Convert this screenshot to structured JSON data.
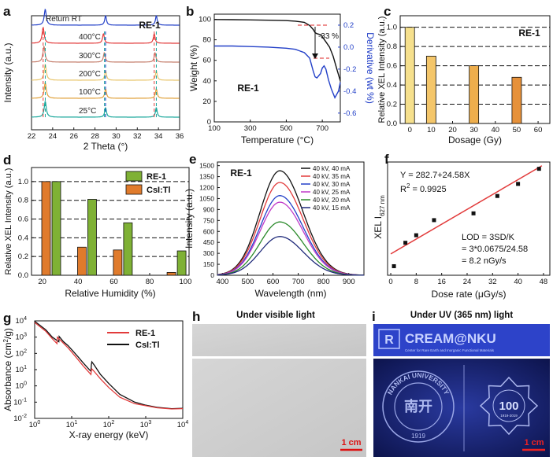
{
  "colors": {
    "red": "#e23b3b",
    "green": "#7fb135",
    "orange": "#e07b2c",
    "blue": "#2340c8",
    "black": "#111111",
    "teal": "#18a79b",
    "yellow": "#f4c63d",
    "gold": "#e7a636"
  },
  "panels": {
    "a": {
      "letter": "a",
      "label": "RE-1",
      "xlabel": "2 Theta (°)",
      "ylabel": "Intensity (a.u.)",
      "xticks": [
        22,
        24,
        26,
        28,
        30,
        32,
        34,
        36
      ],
      "xlim": [
        22,
        36
      ],
      "traces": [
        {
          "name": "Return RT",
          "color": "#2340c8"
        },
        {
          "name": "400°C",
          "color": "#e23b3b"
        },
        {
          "name": "300°C",
          "color": "#c47c6a"
        },
        {
          "name": "200°C",
          "color": "#e8c56b"
        },
        {
          "name": "100°C",
          "color": "#e0a13a"
        },
        {
          "name": "25°C",
          "color": "#18a79b"
        }
      ],
      "peaks": [
        23.3,
        29.0,
        33.8
      ]
    },
    "b": {
      "letter": "b",
      "label": "RE-1",
      "xlabel": "Temperature (°C)",
      "ylabel": "Weight (%)",
      "y2label": "Derivative (wt %)",
      "annotation": "-33 %",
      "xticks": [
        100,
        300,
        500,
        700
      ],
      "xlim": [
        100,
        800
      ],
      "yticks": [
        0,
        20,
        40,
        60,
        80,
        100
      ],
      "ylim": [
        0,
        105
      ],
      "y2ticks": [
        "0.2",
        "0.0",
        "-0.2",
        "-0.4",
        "-0.6"
      ],
      "weight": {
        "x": [
          100,
          200,
          300,
          400,
          500,
          550,
          600,
          630,
          650,
          660,
          670,
          690,
          700,
          720,
          740,
          760,
          780,
          800
        ],
        "y": [
          99.8,
          99.6,
          99.4,
          99.1,
          98.7,
          98.2,
          97,
          94,
          90,
          87,
          86,
          85,
          83,
          78,
          73,
          64,
          52,
          40
        ]
      },
      "derivative": {
        "x": [
          100,
          200,
          300,
          400,
          500,
          550,
          600,
          630,
          650,
          660,
          670,
          690,
          700,
          710,
          720,
          735,
          750,
          770,
          790,
          800
        ],
        "y": [
          0.01,
          0.01,
          0.005,
          0.0,
          -0.01,
          -0.02,
          -0.05,
          -0.1,
          -0.22,
          -0.27,
          -0.28,
          -0.24,
          -0.19,
          -0.17,
          -0.2,
          -0.3,
          -0.38,
          -0.46,
          -0.4,
          -0.32
        ]
      }
    },
    "c": {
      "letter": "c",
      "label": "RE-1",
      "xlabel": "Dosage (Gy)",
      "ylabel": "Relative XEL Intensity (a.u.)",
      "xticks": [
        0,
        10,
        20,
        30,
        40,
        50,
        60
      ],
      "yticks": [
        "0.0",
        "0.2",
        "0.4",
        "0.6",
        "0.8",
        "1.0"
      ],
      "bars": [
        {
          "x": 0,
          "value": 1.0,
          "color": "#f6e08d"
        },
        {
          "x": 10,
          "value": 0.7,
          "color": "#f4c66a"
        },
        {
          "x": 30,
          "value": 0.6,
          "color": "#eeae4c"
        },
        {
          "x": 50,
          "value": 0.48,
          "color": "#e6913a"
        }
      ]
    },
    "d": {
      "letter": "d",
      "xlabel": "Relative Humidity (%)",
      "ylabel": "Relative XEL Intensity (a.u.)",
      "xticks": [
        20,
        40,
        60,
        80,
        100
      ],
      "yticks": [
        "0.0",
        "0.2",
        "0.4",
        "0.6",
        "0.8",
        "1.0"
      ],
      "legend": [
        "RE-1",
        "CsI:Tl"
      ],
      "groups": [
        {
          "x": 25,
          "re1": 1.0,
          "csi": 1.0
        },
        {
          "x": 45,
          "re1": 0.81,
          "csi": 0.3
        },
        {
          "x": 65,
          "re1": 0.56,
          "csi": 0.27
        },
        {
          "x": 95,
          "re1": 0.26,
          "csi": 0.03
        }
      ]
    },
    "e": {
      "letter": "e",
      "label": "RE-1",
      "xlabel": "Wavelength (nm)",
      "ylabel": "Intensity (a.u.)",
      "xticks": [
        400,
        500,
        600,
        700,
        800,
        900
      ],
      "yticks": [
        0,
        150,
        300,
        450,
        600,
        750,
        900,
        1050,
        1200,
        1350,
        1500
      ],
      "xlim": [
        380,
        960
      ],
      "ylim": [
        0,
        1550
      ],
      "center": 627,
      "series": [
        {
          "name": "40 kV, 40 mA",
          "peak": 1430,
          "color": "#111111"
        },
        {
          "name": "40 kV, 35 mA",
          "peak": 1270,
          "color": "#e23b3b"
        },
        {
          "name": "40 kV, 30 mA",
          "peak": 1090,
          "color": "#2340c8"
        },
        {
          "name": "40 kV, 25 mA",
          "peak": 1000,
          "color": "#c13bc9"
        },
        {
          "name": "40 kV, 20 mA",
          "peak": 730,
          "color": "#2a8a2a"
        },
        {
          "name": "40 kV, 15 mA",
          "peak": 530,
          "color": "#1f2a7a"
        }
      ]
    },
    "f": {
      "letter": "f",
      "xlabel": "Dose rate (μGy/s)",
      "ylabel": "XEL I",
      "ylabel_sub": "627 nm",
      "xticks": [
        0,
        8,
        16,
        24,
        32,
        40,
        48
      ],
      "xlim": [
        -1,
        50
      ],
      "ylim": [
        0,
        1500
      ],
      "equation": "Y = 282.7+24.58X",
      "r2": "R",
      "r2_sup": "2",
      "r2_val": " = 0.9925",
      "lod1": "LOD = 3SD/K",
      "lod2": "= 3*0.0675/24.58",
      "lod3": "= 8.2 nGy/s",
      "points": {
        "x": [
          1,
          4.6,
          8,
          13.6,
          26,
          33.5,
          40,
          46.6
        ],
        "y": [
          120,
          430,
          530,
          730,
          820,
          1050,
          1210,
          1410
        ]
      },
      "fit": {
        "intercept": 282.7,
        "slope": 24.58
      }
    },
    "g": {
      "letter": "g",
      "xlabel": "X-ray energy (keV)",
      "ylabel": "Absorbance (cm",
      "ylabel_sup": "2",
      "ylabel_end": "/g)",
      "legend": [
        "RE-1",
        "CsI:Tl"
      ],
      "xticks": [
        "10^0",
        "10^1",
        "10^2",
        "10^3",
        "10^4"
      ],
      "yticks": [
        "10^-2",
        "10^-1",
        "10^0",
        "10^1",
        "10^2",
        "10^3",
        "10^4"
      ],
      "re1": {
        "x": [
          1,
          2,
          3,
          4,
          4.1,
          6,
          8,
          10,
          15,
          20,
          30,
          33,
          34,
          35,
          40,
          60,
          100,
          200,
          500,
          1000,
          2000,
          5000,
          10000
        ],
        "y": [
          8000,
          2300,
          800,
          400,
          1000,
          420,
          220,
          120,
          40,
          18,
          6.5,
          5,
          9,
          11,
          8,
          2.7,
          0.8,
          0.2,
          0.08,
          0.06,
          0.045,
          0.038,
          0.04
        ]
      },
      "csi": {
        "x": [
          1,
          2,
          3,
          4.5,
          4.6,
          6,
          8,
          10,
          15,
          20,
          30,
          33,
          34,
          35,
          40,
          60,
          100,
          200,
          500,
          1000,
          2000,
          5000,
          10000
        ],
        "y": [
          9500,
          2800,
          1000,
          520,
          1100,
          520,
          300,
          170,
          60,
          28,
          10,
          8,
          20,
          30,
          20,
          5,
          1.4,
          0.3,
          0.1,
          0.065,
          0.048,
          0.04,
          0.042
        ]
      }
    },
    "h": {
      "letter": "h",
      "title": "Under visible light",
      "scale": "1 cm"
    },
    "i": {
      "letter": "i",
      "title": "Under UV (365 nm) light",
      "scale": "1 cm",
      "logo_text": "CREAM@NKU",
      "logo_sub": "Center for Rare Earth and Inorganic Functional Materials",
      "seal_text": "NANKAI UNIVERSITY",
      "seal_year": "1919",
      "seal_glyph": "南开",
      "badge_num": "100",
      "badge_years": "1919-2019",
      "logo_mark": "R"
    }
  }
}
